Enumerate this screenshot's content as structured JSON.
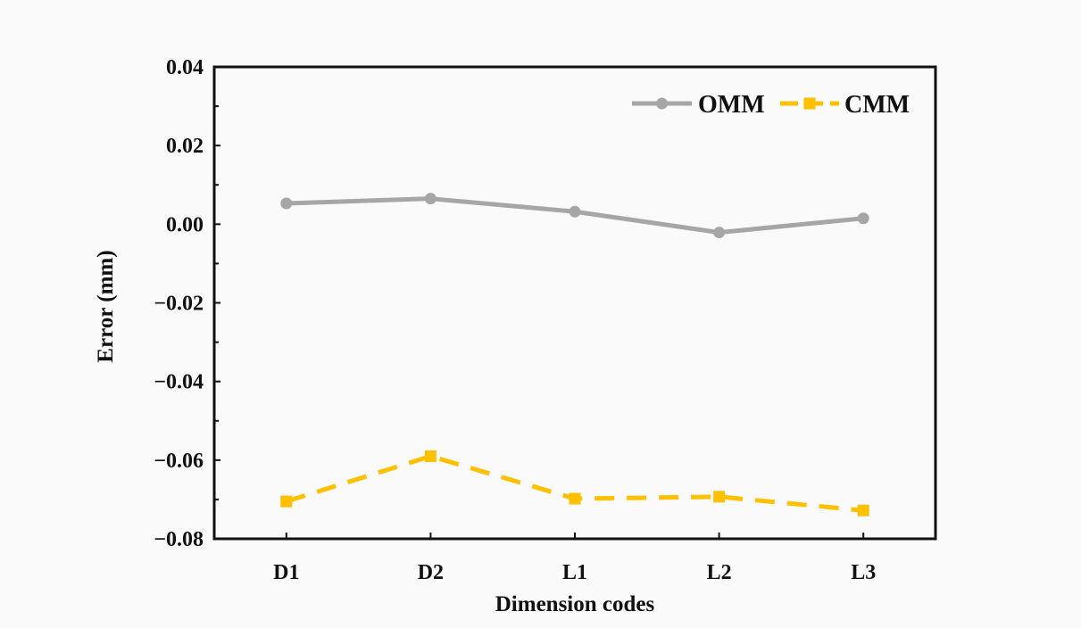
{
  "chart_data": {
    "type": "line",
    "title": "",
    "xlabel": "Dimension codes",
    "ylabel": "Error (mm)",
    "categories": [
      "D1",
      "D2",
      "L1",
      "L2",
      "L3"
    ],
    "ylim": [
      -0.08,
      0.04
    ],
    "yticks": [
      0.04,
      0.02,
      0.0,
      -0.02,
      -0.04,
      -0.06,
      -0.08
    ],
    "ytick_labels": [
      "0.04",
      "0.02",
      "0.00",
      "−0.02",
      "−0.04",
      "−0.06",
      "−0.08"
    ],
    "grid": false,
    "legend_position": "top-right",
    "series": [
      {
        "name": "OMM",
        "values": [
          0.0053,
          0.0065,
          0.0032,
          -0.0021,
          0.0015
        ],
        "color": "#a6a6a6",
        "marker": "circle",
        "line_style": "solid"
      },
      {
        "name": "CMM",
        "values": [
          -0.0705,
          -0.059,
          -0.0698,
          -0.0693,
          -0.0728
        ],
        "color": "#ffc000",
        "marker": "square",
        "line_style": "dashed"
      }
    ]
  }
}
